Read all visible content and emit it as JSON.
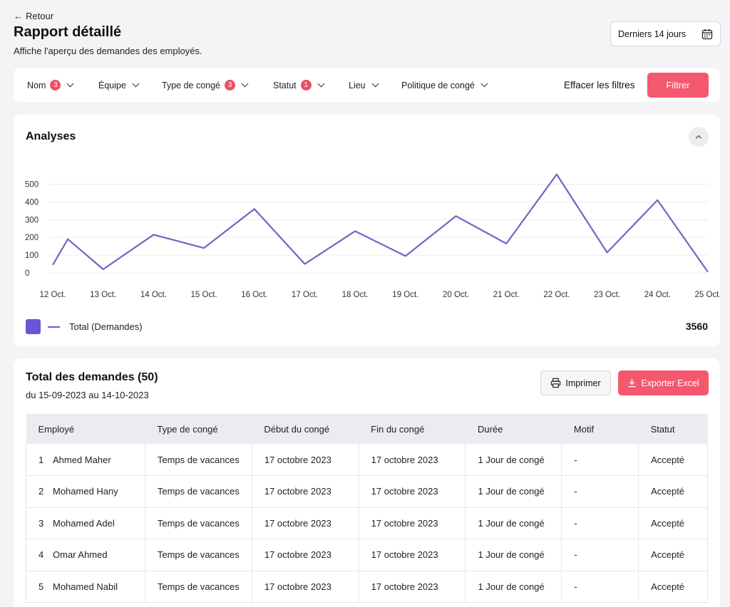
{
  "header": {
    "back_label": "Retour",
    "title": "Rapport détaillé",
    "subtitle": "Affiche l'aperçu des demandes des employés.",
    "date_range_label": "Derniers 14 jours"
  },
  "filters": {
    "items": [
      {
        "label": "Nom",
        "badge": "3"
      },
      {
        "label": "Équipe",
        "badge": ""
      },
      {
        "label": "Type de congé",
        "badge": "3"
      },
      {
        "label": "Statut",
        "badge": "1"
      },
      {
        "label": "Lieu",
        "badge": ""
      },
      {
        "label": "Politique de congé",
        "badge": ""
      }
    ],
    "clear_label": "Effacer les filtres",
    "apply_label": "Filtrer"
  },
  "analytics": {
    "title": "Analyses",
    "legend_label": "Total (Demandes)",
    "total": "3560"
  },
  "chart_data": {
    "type": "line",
    "categories": [
      "12 Oct.",
      "13 Oct.",
      "14 Oct.",
      "15 Oct.",
      "16 Oct.",
      "17 Oct.",
      "18 Oct.",
      "19 Oct.",
      "20 Oct.",
      "21 Oct.",
      "22 Oct.",
      "23 Oct.",
      "24 Oct.",
      "25 Oct."
    ],
    "x": [
      12,
      12.3,
      13,
      14,
      15,
      16,
      17,
      18,
      19,
      20,
      21,
      22,
      23,
      24,
      25
    ],
    "series": [
      {
        "name": "Total (Demandes)",
        "values": [
          45,
          190,
          20,
          215,
          140,
          360,
          50,
          235,
          95,
          320,
          165,
          555,
          115,
          410,
          5
        ]
      }
    ],
    "yticks": [
      0,
      100,
      200,
      300,
      400,
      500
    ],
    "ylim": [
      0,
      550
    ],
    "grid": true,
    "color": "#7463c6",
    "title": "",
    "xlabel": "",
    "ylabel": ""
  },
  "requests": {
    "title": "Total des demandes (50)",
    "date_range": "du 15-09-2023 au 14-10-2023",
    "print_label": "Imprimer",
    "export_label": "Exporter Excel",
    "columns": [
      "Employé",
      "Type de congé",
      "Début du congé",
      "Fin du congé",
      "Durée",
      "Motif",
      "Statut"
    ],
    "rows": [
      {
        "num": "1",
        "employee": "Ahmed Maher",
        "type": "Temps de vacances",
        "start": "17 octobre 2023",
        "end": "17 octobre 2023",
        "duration": "1 Jour de congé",
        "reason": "-",
        "status": "Accepté"
      },
      {
        "num": "2",
        "employee": "Mohamed Hany",
        "type": "Temps de vacances",
        "start": "17 octobre 2023",
        "end": "17 octobre 2023",
        "duration": "1 Jour de congé",
        "reason": "-",
        "status": "Accepté"
      },
      {
        "num": "3",
        "employee": "Mohamed Adel",
        "type": "Temps de vacances",
        "start": "17 octobre 2023",
        "end": "17 octobre 2023",
        "duration": "1 Jour de congé",
        "reason": "-",
        "status": "Accepté"
      },
      {
        "num": "4",
        "employee": "Omar Ahmed",
        "type": "Temps de vacances",
        "start": "17 octobre 2023",
        "end": "17 octobre 2023",
        "duration": "1 Jour de congé",
        "reason": "-",
        "status": "Accepté"
      },
      {
        "num": "5",
        "employee": "Mohamed Nabil",
        "type": "Temps de vacances",
        "start": "17 octobre 2023",
        "end": "17 octobre 2023",
        "duration": "1 Jour de congé",
        "reason": "-",
        "status": "Accepté"
      }
    ]
  }
}
